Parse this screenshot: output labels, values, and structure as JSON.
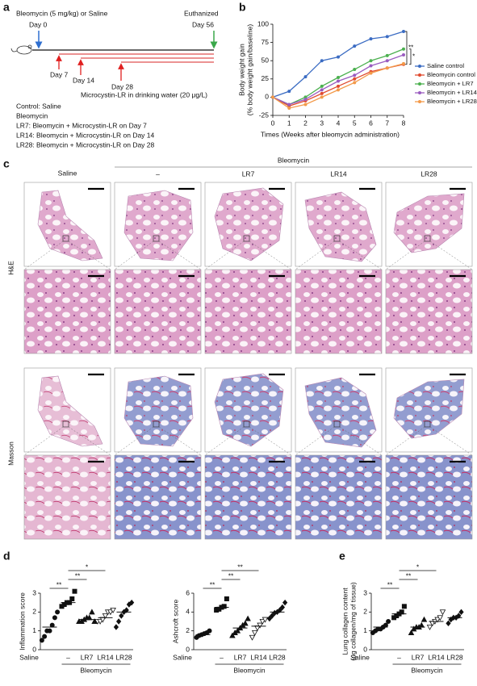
{
  "panel_letters": [
    "a",
    "b",
    "c",
    "d",
    "e"
  ],
  "timeline": {
    "treatment": "Bleomycin (5 mg/kg) or Saline",
    "start": "Day 0",
    "end_label": "Euthanized",
    "end": "Day 56",
    "days": [
      "Day 7",
      "Day 14",
      "Day 28"
    ],
    "water": "Microcystin-LR in drinking water (20 μg/L)",
    "groups": [
      "Control: Saline",
      "Bleomycin",
      "LR7: Bleomycin + Microcystin-LR on Day 7",
      "LR14: Bleomycin + Microcystin-LR on Day 14",
      "LR28: Bleomycin + Microcystin-LR on Day 28"
    ]
  },
  "histology": {
    "columns": [
      "Saline",
      "–",
      "LR7",
      "LR14",
      "LR28"
    ],
    "group_label": "Bleomycin",
    "rows": [
      "H&E",
      "Masson"
    ]
  },
  "chart_data": [
    {
      "type": "line",
      "ylabel": [
        "Body weight gain",
        "(% body weight gain/baseline)"
      ],
      "xlabel": "Times (Weeks after bleomycin administration)",
      "x": [
        0,
        1,
        2,
        3,
        4,
        5,
        6,
        7,
        8
      ],
      "xlim": [
        0,
        8
      ],
      "xticks": [
        0,
        1,
        2,
        3,
        4,
        5,
        6,
        7,
        8
      ],
      "ylim": [
        -25,
        100
      ],
      "yticks": [
        -25,
        0,
        25,
        50,
        75,
        100
      ],
      "series": [
        {
          "name": "Saline control",
          "color": "#3b6cc3",
          "values": [
            0,
            8,
            28,
            50,
            55,
            70,
            80,
            83,
            90
          ]
        },
        {
          "name": "Bleomycin control",
          "color": "#e04a2f",
          "values": [
            0,
            -12,
            -5,
            5,
            15,
            25,
            35,
            40,
            45
          ]
        },
        {
          "name": "Bleomycin + LR7",
          "color": "#4bb04f",
          "values": [
            0,
            -10,
            0,
            15,
            27,
            38,
            50,
            57,
            66
          ]
        },
        {
          "name": "Bleomycin + LR14",
          "color": "#9a5cc0",
          "values": [
            0,
            -10,
            -3,
            10,
            22,
            30,
            43,
            50,
            58
          ]
        },
        {
          "name": "Bleomycin + LR28",
          "color": "#f39a4a",
          "values": [
            0,
            -15,
            -10,
            0,
            10,
            20,
            33,
            40,
            46
          ]
        }
      ],
      "annotations": [
        {
          "text": "**",
          "between": [
            "Saline control",
            "Bleomycin control"
          ]
        },
        {
          "text": "*",
          "between": [
            "Bleomycin + LR7",
            "Bleomycin control"
          ]
        }
      ],
      "legend": "right"
    },
    {
      "type": "strip",
      "ylabel": "Inflammation score",
      "categories": [
        "Saline",
        "–",
        "LR7",
        "LR14",
        "LR28"
      ],
      "group_label": "Bleomycin",
      "markers": [
        "circle",
        "square",
        "triangle",
        "triangle-down-open",
        "diamond"
      ],
      "ylim": [
        0,
        3
      ],
      "yticks": [
        0,
        1,
        2,
        3
      ],
      "values": [
        [
          0.5,
          0.7,
          1,
          1,
          1.3,
          1.7,
          2
        ],
        [
          2.3,
          2.4,
          2.5,
          2.5,
          2.7,
          3.1
        ],
        [
          1.5,
          1.5,
          1.6,
          1.7,
          1.7,
          2,
          1.5
        ],
        [
          1.5,
          1.5,
          1.6,
          1.8,
          2,
          2,
          2.1
        ],
        [
          1.2,
          1.5,
          1.8,
          2,
          2.1,
          2.4,
          2.5
        ]
      ],
      "means": [
        1.2,
        2.5,
        1.6,
        1.7,
        2.0
      ],
      "annotations": [
        {
          "text": "**",
          "between": [
            "Saline",
            "–"
          ]
        },
        {
          "text": "**",
          "between": [
            "–",
            "LR7"
          ]
        },
        {
          "text": "*",
          "between": [
            "–",
            "LR14"
          ]
        }
      ]
    },
    {
      "type": "strip",
      "ylabel": "Ashcroft score",
      "categories": [
        "Saline",
        "–",
        "LR7",
        "LR14",
        "LR28"
      ],
      "group_label": "Bleomycin",
      "markers": [
        "circle",
        "square",
        "triangle",
        "triangle-down-open",
        "diamond"
      ],
      "ylim": [
        0,
        6
      ],
      "yticks": [
        0,
        2,
        4,
        6
      ],
      "values": [
        [
          1.3,
          1.5,
          1.6,
          1.7,
          1.8,
          2
        ],
        [
          4.2,
          4.3,
          4.5,
          4.6,
          5.4
        ],
        [
          1.5,
          1.8,
          2,
          2.3,
          2.6,
          2.8,
          3.3
        ],
        [
          1.3,
          1.8,
          2.3,
          2.6,
          3,
          3.2
        ],
        [
          3.3,
          3.6,
          3.9,
          4,
          4.2,
          4.5,
          5
        ]
      ],
      "means": [
        1.6,
        4.5,
        2.3,
        2.5,
        4.0
      ],
      "annotations": [
        {
          "text": "**",
          "between": [
            "Saline",
            "–"
          ]
        },
        {
          "text": "**",
          "between": [
            "–",
            "LR7"
          ]
        },
        {
          "text": "**",
          "between": [
            "–",
            "LR14"
          ]
        }
      ]
    },
    {
      "type": "strip",
      "ylabel": [
        "Lung collagen content",
        "(μg collagen/mg of tissue)"
      ],
      "categories": [
        "Saline",
        "–",
        "LR7",
        "LR14",
        "LR28"
      ],
      "group_label": "Bleomycin",
      "markers": [
        "circle",
        "square",
        "triangle",
        "triangle-down-open",
        "diamond"
      ],
      "ylim": [
        0,
        3
      ],
      "yticks": [
        0,
        1,
        2,
        3
      ],
      "values": [
        [
          0.9,
          1,
          1.1,
          1.1,
          1.2,
          1.3,
          1.5
        ],
        [
          1.7,
          1.8,
          1.9,
          2,
          2.3
        ],
        [
          0.9,
          1.1,
          1.2,
          1.2,
          1.3,
          1.6
        ],
        [
          1.2,
          1.4,
          1.5,
          1.6,
          1.7,
          2
        ],
        [
          1.4,
          1.6,
          1.7,
          1.7,
          1.8,
          2
        ]
      ],
      "means": [
        1.2,
        1.9,
        1.2,
        1.5,
        1.7
      ],
      "annotations": [
        {
          "text": "**",
          "between": [
            "Saline",
            "–"
          ]
        },
        {
          "text": "**",
          "between": [
            "–",
            "LR7"
          ]
        },
        {
          "text": "*",
          "between": [
            "–",
            "LR14"
          ]
        }
      ]
    }
  ]
}
